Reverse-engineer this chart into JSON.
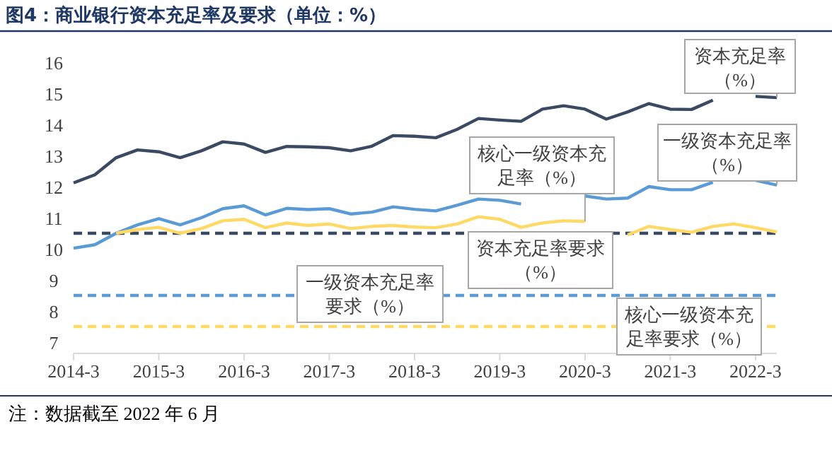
{
  "chart_data": {
    "type": "line",
    "title": "图4：商业银行资本充足率及要求（单位：%）",
    "x": [
      "2014-03",
      "2014-06",
      "2014-09",
      "2014-12",
      "2015-03",
      "2015-06",
      "2015-09",
      "2015-12",
      "2016-03",
      "2016-06",
      "2016-09",
      "2016-12",
      "2017-03",
      "2017-06",
      "2017-09",
      "2017-12",
      "2018-03",
      "2018-06",
      "2018-09",
      "2018-12",
      "2019-03",
      "2019-06",
      "2019-09",
      "2019-12",
      "2020-03",
      "2020-06",
      "2020-09",
      "2020-12",
      "2021-03",
      "2021-06",
      "2021-09",
      "2021-12",
      "2022-03",
      "2022-06"
    ],
    "series": [
      {
        "color": "#3b4a63",
        "values": [
          12.12,
          12.38,
          12.93,
          13.18,
          13.12,
          12.93,
          13.15,
          13.44,
          13.37,
          13.1,
          13.29,
          13.28,
          13.25,
          13.15,
          13.3,
          13.64,
          13.62,
          13.57,
          13.84,
          14.19,
          14.14,
          14.1,
          14.49,
          14.6,
          14.49,
          14.17,
          14.4,
          14.67,
          14.49,
          14.48,
          14.78,
          null,
          14.9,
          14.86
        ]
      },
      {
        "color": "#5b9bd5",
        "values": [
          10.02,
          10.13,
          10.5,
          10.77,
          10.97,
          10.77,
          11.0,
          11.29,
          11.38,
          11.09,
          11.3,
          11.26,
          11.29,
          11.12,
          11.18,
          11.35,
          11.27,
          11.22,
          11.4,
          11.6,
          11.56,
          11.44,
          null,
          null,
          11.7,
          11.6,
          11.63,
          12.0,
          11.9,
          11.9,
          12.14,
          null,
          12.2,
          12.05
        ]
      },
      {
        "color": "#ffd966",
        "values": [
          null,
          null,
          10.5,
          10.62,
          10.69,
          10.5,
          10.65,
          10.9,
          10.95,
          10.68,
          10.83,
          10.75,
          10.8,
          10.65,
          10.72,
          10.75,
          10.7,
          10.68,
          10.8,
          11.03,
          10.95,
          10.69,
          10.83,
          10.9,
          10.88,
          null,
          10.45,
          10.72,
          10.62,
          10.53,
          10.72,
          10.8,
          10.68,
          10.54
        ]
      }
    ],
    "ref_lines": [
      {
        "axis": "y",
        "value": 10.5,
        "color": "#3b4a63",
        "line_style": "dashed"
      },
      {
        "axis": "y",
        "value": 8.5,
        "color": "#5b9bd5",
        "line_style": "dashed"
      },
      {
        "axis": "y",
        "value": 7.5,
        "color": "#ffd966",
        "line_style": "dashed"
      }
    ],
    "annotations": [
      {
        "text": "资本充足率（%）",
        "x": "2022-06",
        "y": 14.86
      },
      {
        "text": "一级资本充足率（%）",
        "x": "2022-06",
        "y": 12.05
      },
      {
        "text": "核心一级资本充足率（%）",
        "x": "2020-03",
        "y": 10.88
      },
      {
        "text": "资本充足率要求（%）",
        "x": "2020-06",
        "y": 10.5
      },
      {
        "text": "一级资本充足率要求（%）",
        "x": "2017-03",
        "y": 8.5
      },
      {
        "text": "核心一级资本充足率要求（%）",
        "x": "2020-09",
        "y": 7.5
      },
      "注：数据截至 2022 年 6 月"
    ],
    "xlim": [
      "2014-03",
      "2022-06"
    ],
    "xticks": [
      {
        "value": "2014-03",
        "label": "2014-3"
      },
      {
        "value": "2015-03",
        "label": "2015-3"
      },
      {
        "value": "2016-03",
        "label": "2016-3"
      },
      {
        "value": "2017-03",
        "label": "2017-3"
      },
      {
        "value": "2018-03",
        "label": "2018-3"
      },
      {
        "value": "2019-03",
        "label": "2019-3"
      },
      {
        "value": "2020-03",
        "label": "2020-3"
      },
      {
        "value": "2021-03",
        "label": "2021-3"
      },
      {
        "value": "2022-03",
        "label": "2022-3"
      }
    ],
    "ylim": [
      7,
      16
    ],
    "yticks": [
      7,
      8,
      9,
      10,
      11,
      12,
      13,
      14,
      15,
      16
    ],
    "grid": false,
    "line_style": "solid",
    "marker": "none"
  }
}
